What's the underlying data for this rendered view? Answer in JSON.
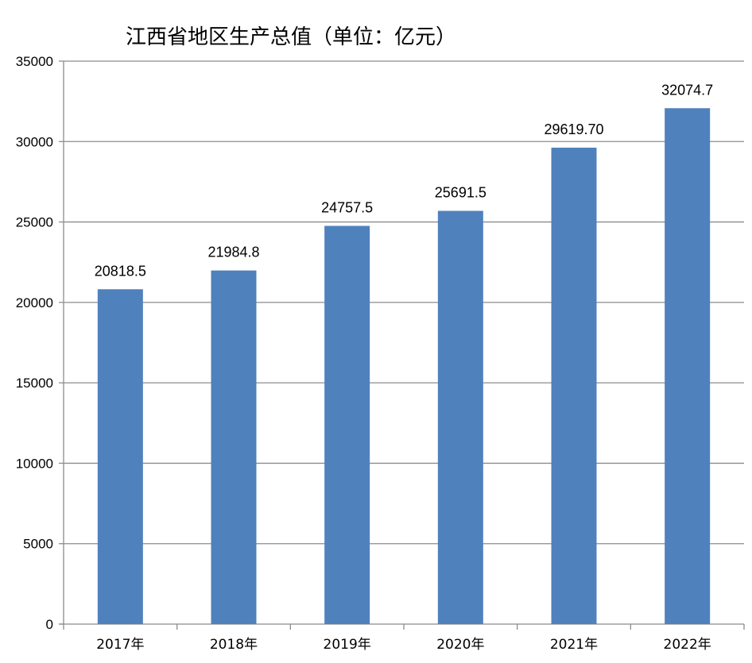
{
  "chart_data": {
    "type": "bar",
    "title": "江西省地区生产总值（单位：亿元）",
    "categories": [
      "2017年",
      "2018年",
      "2019年",
      "2020年",
      "2021年",
      "2022年"
    ],
    "values": [
      20818.5,
      21984.8,
      24757.5,
      25691.5,
      29619.7,
      32074.7
    ],
    "data_labels": [
      "20818.5",
      "21984.8",
      "24757.5",
      "25691.5",
      "29619.70",
      "32074.7"
    ],
    "xlabel": "",
    "ylabel": "",
    "ylim": [
      0,
      35000
    ],
    "yticks": [
      "0",
      "5000",
      "10000",
      "15000",
      "20000",
      "25000",
      "30000",
      "35000"
    ],
    "grid": true,
    "legend": "none",
    "bar_color": "#4f81bd",
    "grid_color": "#8c8c8c"
  }
}
